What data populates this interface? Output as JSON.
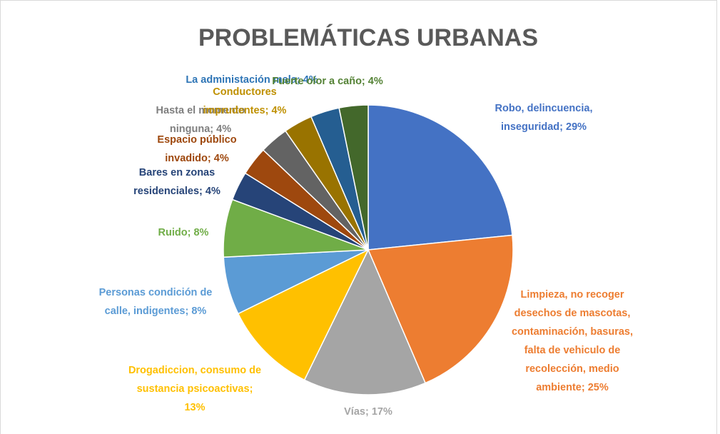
{
  "chart_data": {
    "type": "pie",
    "title": "PROBLEMÁTICAS URBANAS",
    "labels": [
      "Robo, delincuencia, inseguridad; 29%",
      "Limpieza, no recoger desechos de mascotas, contaminación, basuras, falta de vehiculo de recolección, medio ambiente; 25%",
      "Vías; 17%",
      "Drogadiccion, consumo de sustancia psicoactivas; 13%",
      "Personas condición de calle, indigentes; 8%",
      "Ruido; 8%",
      "Bares en zonas residenciales; 4%",
      "Espacio público invadido; 4%",
      "Hasta el momento ninguna; 4%",
      "Conductores imprudentes; 4%",
      "La administación mala; 4%",
      "Fuerte olor a caño; 4%"
    ],
    "values": [
      29,
      25,
      17,
      13,
      8,
      8,
      4,
      4,
      4,
      4,
      4,
      4
    ],
    "colors": [
      "#4472c4",
      "#ed7d31",
      "#a5a5a5",
      "#ffc000",
      "#5b9bd5",
      "#70ad47",
      "#264478",
      "#9e480e",
      "#636363",
      "#997300",
      "#255e91",
      "#43682b"
    ]
  }
}
